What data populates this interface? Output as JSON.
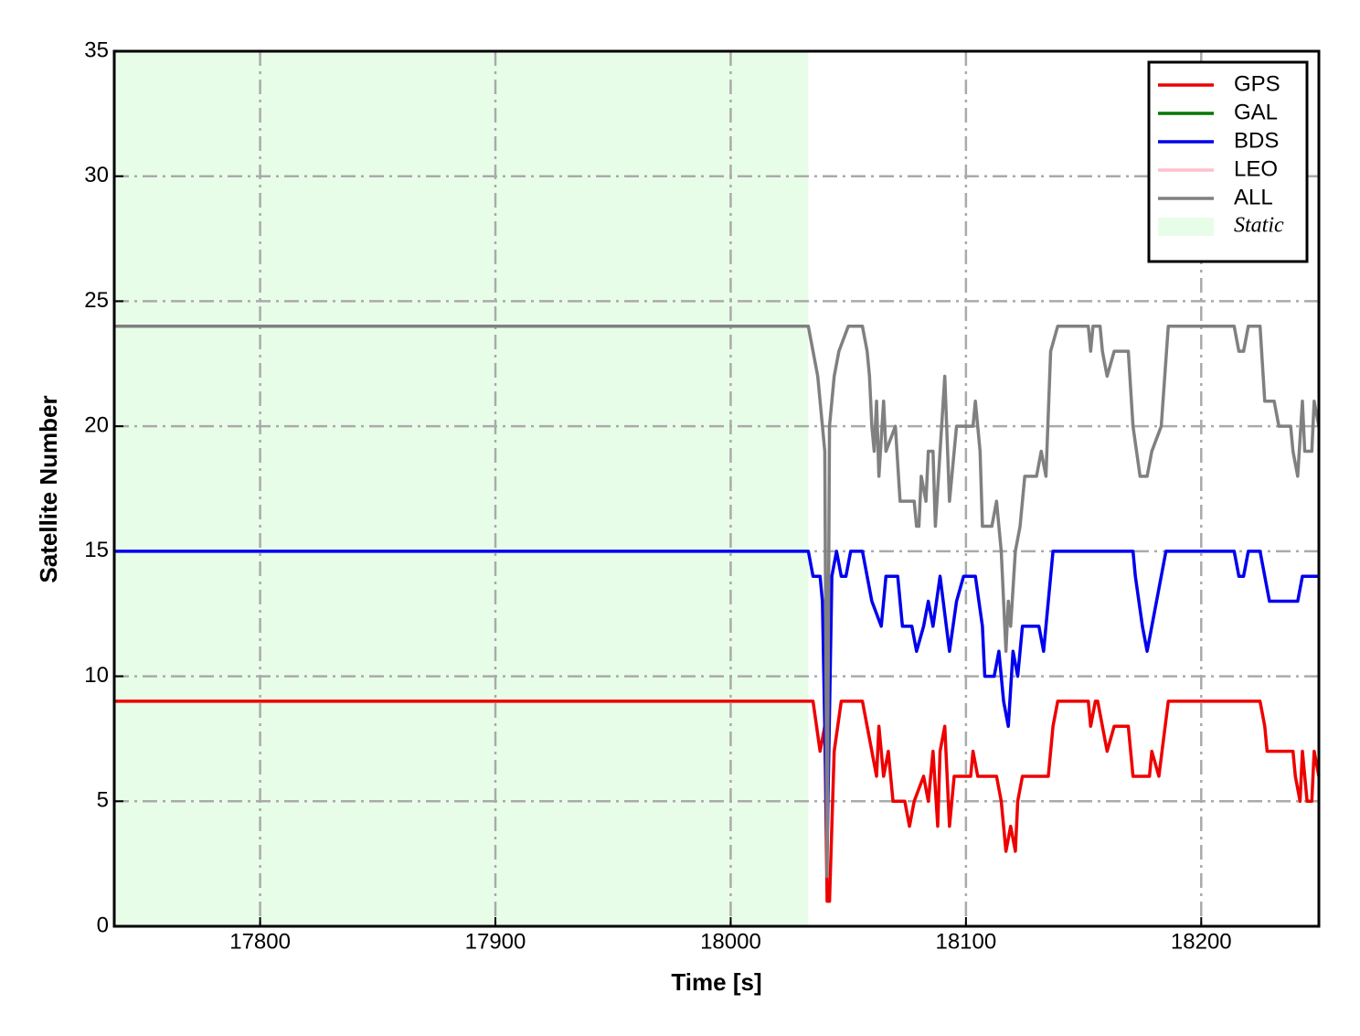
{
  "chart_data": {
    "type": "line",
    "xlabel": "Time [s]",
    "ylabel": "Satellite Number",
    "xlim": [
      17738,
      18250
    ],
    "ylim": [
      0,
      35
    ],
    "xticks": [
      17800,
      17900,
      18000,
      18100,
      18200
    ],
    "yticks": [
      0,
      5,
      10,
      15,
      20,
      25,
      30,
      35
    ],
    "grid": true,
    "legend": "upper right",
    "series": [
      {
        "name": "GPS",
        "color": "#ee0000",
        "x": [
          17738,
          18035,
          18038,
          18040,
          18041,
          18042,
          18044,
          18047,
          18056,
          18060,
          18062,
          18063,
          18065,
          18067,
          18069,
          18074,
          18076,
          18078,
          18082,
          18084,
          18086,
          18088,
          18089,
          18091,
          18093,
          18095,
          18102,
          18103,
          18105,
          18113,
          18115,
          18117,
          18119,
          18121,
          18122,
          18124,
          18135,
          18137,
          18139,
          18152,
          18153,
          18155,
          18156,
          18158,
          18160,
          18163,
          18169,
          18171,
          18178,
          18179,
          18182,
          18186,
          18225,
          18227,
          18228,
          18239,
          18240,
          18242,
          18243,
          18245,
          18247,
          18248,
          18250
        ],
        "values": [
          9,
          9,
          7,
          8,
          1,
          1,
          7,
          9,
          9,
          7,
          6,
          8,
          6,
          7,
          5,
          5,
          4,
          5,
          6,
          5,
          7,
          4,
          7,
          8,
          4,
          6,
          6,
          7,
          6,
          6,
          5,
          3,
          4,
          3,
          5,
          6,
          6,
          8,
          9,
          9,
          8,
          9,
          9,
          8,
          7,
          8,
          8,
          6,
          6,
          7,
          6,
          9,
          9,
          8,
          7,
          7,
          6,
          5,
          7,
          5,
          5,
          7,
          6
        ]
      },
      {
        "name": "GAL",
        "color": "#007700"
      },
      {
        "name": "BDS",
        "color": "#0000ee",
        "x": [
          17738,
          18033,
          18035,
          18038,
          18039,
          18041,
          18043,
          18045,
          18047,
          18049,
          18051,
          18056,
          18060,
          18064,
          18066,
          18071,
          18073,
          18077,
          18079,
          18082,
          18084,
          18086,
          18089,
          18093,
          18096,
          18099,
          18104,
          18107,
          18108,
          18112,
          18114,
          18116,
          18118,
          18120,
          18122,
          18124,
          18131,
          18133,
          18135,
          18137,
          18171,
          18172,
          18175,
          18177,
          18179,
          18183,
          18185,
          18214,
          18216,
          18218,
          18220,
          18225,
          18227,
          18229,
          18241,
          18243,
          18250
        ],
        "values": [
          15,
          15,
          14,
          14,
          13,
          3,
          14,
          15,
          14,
          14,
          15,
          15,
          13,
          12,
          14,
          14,
          12,
          12,
          11,
          12,
          13,
          12,
          14,
          11,
          13,
          14,
          14,
          12,
          10,
          10,
          11,
          9,
          8,
          11,
          10,
          12,
          12,
          11,
          13,
          15,
          15,
          14,
          12,
          11,
          12,
          14,
          15,
          15,
          14,
          14,
          15,
          15,
          14,
          13,
          13,
          14,
          14
        ]
      },
      {
        "name": "LEO",
        "color": "#ffc0cb"
      },
      {
        "name": "ALL",
        "color": "#808080",
        "x": [
          17738,
          18033,
          18035,
          18037,
          18039,
          18040,
          18041,
          18042,
          18044,
          18046,
          18050,
          18056,
          18058,
          18059,
          18060,
          18061,
          18062,
          18063,
          18065,
          18066,
          18070,
          18072,
          18078,
          18079,
          18080,
          18081,
          18083,
          18084,
          18086,
          18087,
          18089,
          18091,
          18093,
          18094,
          18096,
          18103,
          18104,
          18106,
          18107,
          18111,
          18113,
          18115,
          18117,
          18118,
          18119,
          18121,
          18123,
          18125,
          18130,
          18132,
          18134,
          18136,
          18139,
          18152,
          18153,
          18154,
          18157,
          18158,
          18160,
          18163,
          18169,
          18171,
          18174,
          18177,
          18179,
          18183,
          18186,
          18214,
          18216,
          18218,
          18220,
          18225,
          18227,
          18231,
          18233,
          18238,
          18239,
          18241,
          18243,
          18244,
          18247,
          18248,
          18250
        ],
        "values": [
          24,
          24,
          23,
          22,
          20,
          19,
          2,
          20,
          22,
          23,
          24,
          24,
          23,
          22,
          20,
          19,
          21,
          18,
          21,
          19,
          20,
          17,
          17,
          16,
          16,
          18,
          17,
          19,
          19,
          16,
          19,
          22,
          17,
          18,
          20,
          20,
          21,
          19,
          16,
          16,
          17,
          15,
          11,
          13,
          12,
          15,
          16,
          18,
          18,
          19,
          18,
          23,
          24,
          24,
          23,
          24,
          24,
          23,
          22,
          23,
          23,
          20,
          18,
          18,
          19,
          20,
          24,
          24,
          23,
          23,
          24,
          24,
          21,
          21,
          20,
          20,
          19,
          18,
          21,
          19,
          19,
          21,
          20
        ]
      }
    ],
    "shaded_regions": [
      {
        "name": "Static",
        "color": "#e8fde8",
        "x": [
          17738,
          18033
        ]
      }
    ]
  }
}
